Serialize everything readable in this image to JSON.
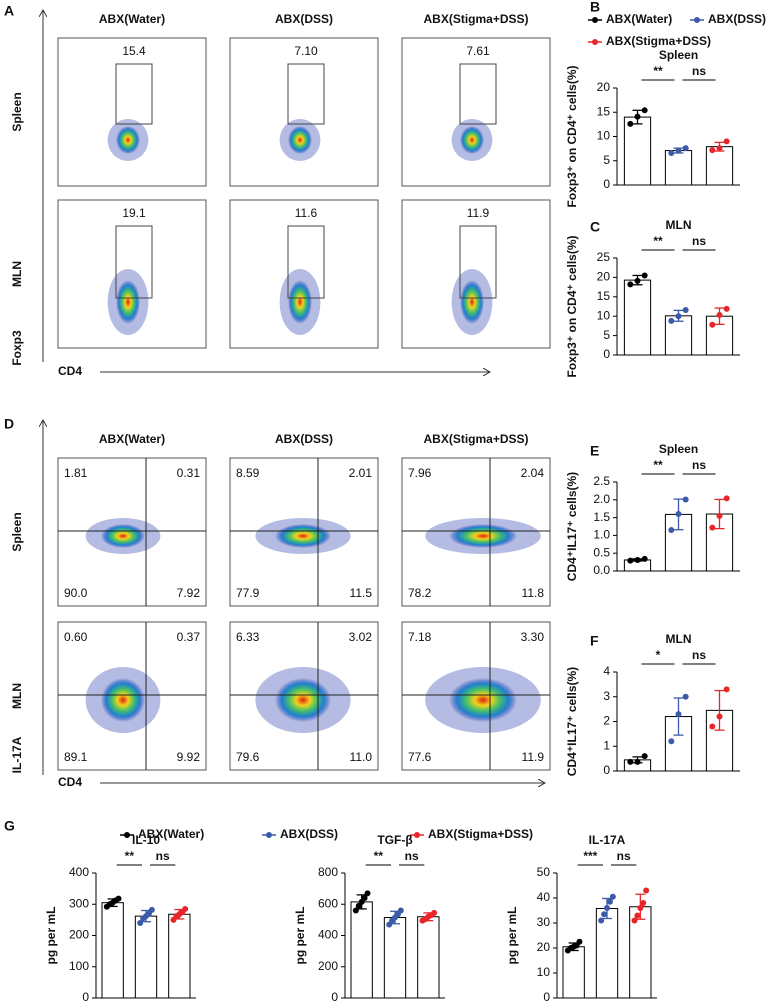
{
  "flow_cytometry": [
    {
      "panel": "A",
      "columns": [
        "ABX(Water)",
        "ABX(DSS)",
        "ABX(Stigma+DSS)"
      ],
      "rows": [
        "Spleen",
        "MLN"
      ],
      "y_label": "Foxp3",
      "x_label": "CD4",
      "gates": [
        [
          "15.4",
          "7.10",
          "7.61"
        ],
        [
          "19.1",
          "11.6",
          "11.9"
        ]
      ]
    },
    {
      "panel": "D",
      "columns": [
        "ABX(Water)",
        "ABX(DSS)",
        "ABX(Stigma+DSS)"
      ],
      "rows": [
        "Spleen",
        "MLN"
      ],
      "y_label": "IL-17A",
      "x_label": "CD4",
      "quadrants": [
        [
          [
            "1.81",
            "0.31",
            "90.0",
            "7.92"
          ],
          [
            "8.59",
            "2.01",
            "77.9",
            "11.5"
          ],
          [
            "7.96",
            "2.04",
            "78.2",
            "11.8"
          ]
        ],
        [
          [
            "0.60",
            "0.37",
            "89.1",
            "9.92"
          ],
          [
            "6.33",
            "3.02",
            "79.6",
            "11.0"
          ],
          [
            "7.18",
            "3.30",
            "77.6",
            "11.9"
          ]
        ]
      ]
    }
  ],
  "legend": {
    "names": [
      "ABX(Water)",
      "ABX(DSS)",
      "ABX(Stigma+DSS)"
    ],
    "colors": [
      "#000000",
      "#3b5ba9",
      "#e8262a"
    ]
  },
  "cytokine_panel": "G",
  "chart_data": [
    {
      "type": "bar",
      "panel": "B",
      "title": "Spleen",
      "ylabel": "Foxp3⁺ on CD4⁺ cells(%)",
      "annotations": [
        "**",
        "ns"
      ],
      "ylim": [
        0,
        20
      ],
      "yticks": [
        0,
        5,
        10,
        15,
        20
      ],
      "values": [
        14,
        7.1,
        7.9
      ],
      "errors": [
        1.4,
        0.5,
        0.9
      ],
      "points": [
        [
          12.6,
          14.1,
          15.4
        ],
        [
          6.6,
          7.1,
          7.6
        ],
        [
          7.2,
          7.6,
          9
        ]
      ]
    },
    {
      "type": "bar",
      "panel": "C",
      "title": "MLN",
      "ylabel": "Foxp3⁺ on CD4⁺ cells(%)",
      "annotations": [
        "**",
        "ns"
      ],
      "ylim": [
        0,
        25
      ],
      "yticks": [
        0,
        5,
        10,
        15,
        20,
        25
      ],
      "values": [
        19.3,
        10.1,
        10
      ],
      "errors": [
        1.2,
        1.4,
        2.1
      ],
      "points": [
        [
          18.2,
          19.1,
          20.5
        ],
        [
          8.8,
          10,
          11.6
        ],
        [
          7.8,
          10.3,
          11.9
        ]
      ]
    },
    {
      "type": "bar",
      "panel": "E",
      "title": "Spleen",
      "ylabel": "CD4⁺IL17⁺ cells(%)",
      "annotations": [
        "**",
        "ns"
      ],
      "ylim": [
        0,
        2.5
      ],
      "yticks": [
        {
          "value": 0,
          "label": "0.0"
        },
        0.5,
        {
          "value": 1,
          "label": "1.0"
        },
        1.5,
        {
          "value": 2,
          "label": "2.0"
        },
        2.5
      ],
      "values": [
        0.31,
        1.59,
        1.6
      ],
      "errors": [
        0.03,
        0.43,
        0.41
      ],
      "points": [
        [
          0.29,
          0.31,
          0.34
        ],
        [
          1.15,
          1.6,
          2.01
        ],
        [
          1.22,
          1.55,
          2.04
        ]
      ]
    },
    {
      "type": "bar",
      "panel": "F",
      "title": "MLN",
      "ylabel": "CD4⁺IL17⁺ cells(%)",
      "annotations": [
        "*",
        "ns"
      ],
      "ylim": [
        0,
        4
      ],
      "yticks": [
        0,
        1,
        2,
        3,
        4
      ],
      "values": [
        0.45,
        2.2,
        2.45
      ],
      "errors": [
        0.12,
        0.75,
        0.8
      ],
      "points": [
        [
          0.37,
          0.37,
          0.6
        ],
        [
          1.2,
          2.3,
          3
        ],
        [
          1.8,
          2.2,
          3.3
        ]
      ]
    },
    {
      "type": "bar",
      "title": "IL-10",
      "ylabel": "pg per mL",
      "annotations": [
        "**",
        "ns"
      ],
      "ylim": [
        0,
        400
      ],
      "yticks": [
        0,
        100,
        200,
        300,
        400
      ],
      "values": [
        305,
        262,
        268
      ],
      "errors": [
        12,
        18,
        15
      ],
      "points": [
        [
          292,
          300,
          305,
          312,
          318
        ],
        [
          240,
          255,
          262,
          270,
          282
        ],
        [
          250,
          262,
          268,
          274,
          285
        ]
      ]
    },
    {
      "type": "bar",
      "title": "TGF-β",
      "ylabel": "pg per mL",
      "annotations": [
        "**",
        "ns"
      ],
      "ylim": [
        0,
        800
      ],
      "yticks": [
        0,
        200,
        400,
        600,
        800
      ],
      "values": [
        615,
        515,
        520
      ],
      "errors": [
        45,
        40,
        25
      ],
      "points": [
        [
          560,
          590,
          615,
          640,
          670
        ],
        [
          470,
          495,
          515,
          535,
          560
        ],
        [
          495,
          505,
          520,
          530,
          545
        ]
      ]
    },
    {
      "type": "bar",
      "title": "IL-17A",
      "ylabel": "pg per mL",
      "annotations": [
        "***",
        "ns"
      ],
      "ylim": [
        0,
        50
      ],
      "yticks": [
        0,
        10,
        20,
        30,
        40,
        50
      ],
      "values": [
        20.5,
        35.8,
        36.5
      ],
      "errors": [
        1.5,
        4,
        5
      ],
      "points": [
        [
          19,
          20,
          20.5,
          21,
          22.5
        ],
        [
          31,
          33.5,
          36,
          38.5,
          40.5
        ],
        [
          31,
          33,
          36,
          38,
          43
        ]
      ]
    }
  ]
}
